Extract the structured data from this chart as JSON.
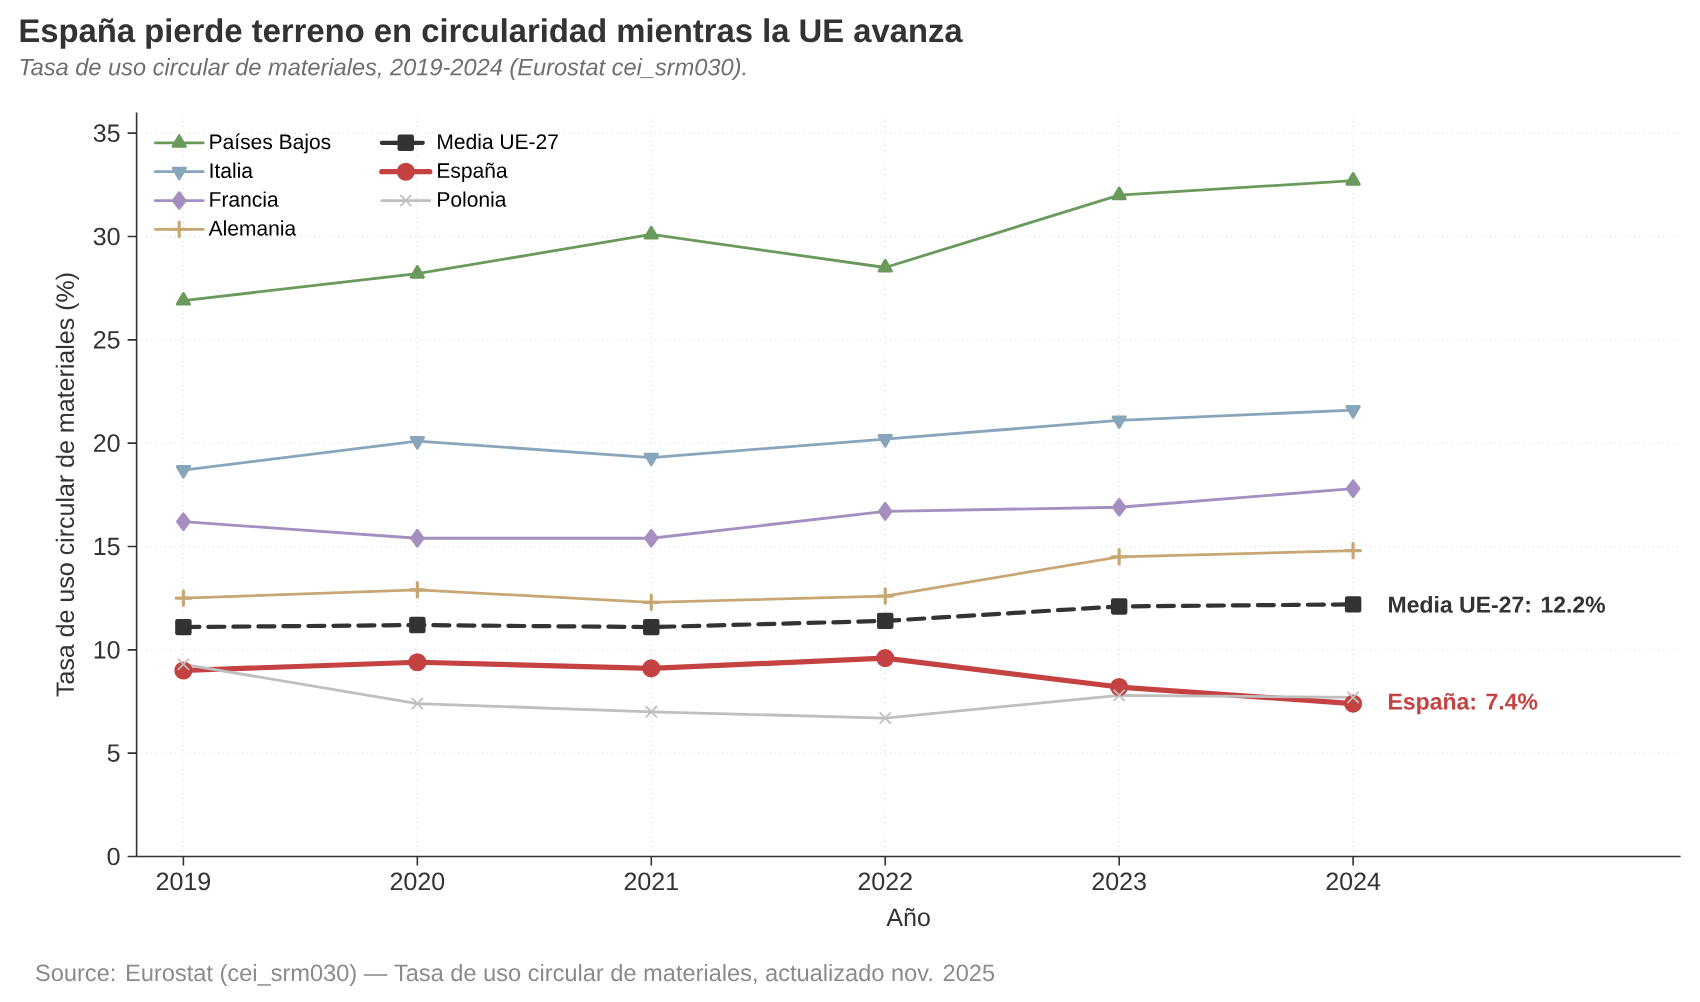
{
  "chart_data": {
    "type": "line",
    "title": "España pierde terreno en circularidad mientras la UE avanza",
    "subtitle": "Tasa de uso circular de materiales, 2019-2024 (Eurostat cei_srm030).",
    "xlabel": "Año",
    "ylabel": "Tasa de uso circular de materiales (%)",
    "x": [
      2019,
      2020,
      2021,
      2022,
      2023,
      2024
    ],
    "series": [
      {
        "name": "Países Bajos",
        "color": "#6a9a5b",
        "marker": "triangle",
        "values": [
          26.9,
          28.2,
          30.1,
          28.5,
          32.0,
          32.7
        ]
      },
      {
        "name": "Italia",
        "color": "#87a6bb",
        "marker": "triangle-down",
        "values": [
          18.7,
          20.1,
          19.3,
          20.2,
          21.1,
          21.6
        ]
      },
      {
        "name": "Francia",
        "color": "#a48fc0",
        "marker": "diamond",
        "values": [
          16.2,
          15.4,
          15.4,
          16.7,
          16.9,
          17.8
        ]
      },
      {
        "name": "Alemania",
        "color": "#c8a774",
        "marker": "plus",
        "values": [
          12.5,
          12.9,
          12.3,
          12.6,
          14.5,
          14.8
        ]
      },
      {
        "name": "Media UE-27",
        "color": "#333333",
        "marker": "square",
        "line_style": "dashed",
        "values": [
          11.1,
          11.2,
          11.1,
          11.4,
          12.1,
          12.2
        ]
      },
      {
        "name": "España",
        "color": "#c44242",
        "marker": "circle",
        "values": [
          9.0,
          9.4,
          9.1,
          9.6,
          8.2,
          7.4
        ]
      },
      {
        "name": "Polonia",
        "color": "#bfbfbf",
        "marker": "cross",
        "values": [
          9.3,
          7.4,
          7.0,
          6.7,
          7.8,
          7.7
        ]
      }
    ],
    "xlim": [
      2018.8,
      2025.4
    ],
    "xticks": [
      2019,
      2020,
      2021,
      2022,
      2023,
      2024
    ],
    "ylim": [
      0,
      36
    ],
    "yticks": [
      0,
      5,
      10,
      15,
      20,
      25,
      30,
      35
    ],
    "grid": true,
    "legend": "top left",
    "line_style": "solid",
    "annotations": [
      {
        "text": "Media UE-27: 12.2%",
        "x": 2024,
        "y": 12.2
      },
      {
        "text": "España: 7.4%",
        "x": 2024,
        "y": 7.4
      },
      "Source: Eurostat (cei_srm030) — Tasa de uso circular de materiales, actualizado nov. 2025"
    ]
  }
}
